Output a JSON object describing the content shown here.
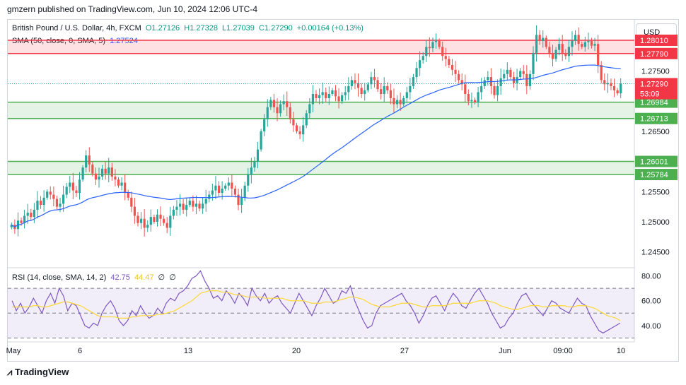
{
  "header": {
    "publisher_line": "gmzern published on TradingView.com, Jun 10, 2024 12:06 UTC-4"
  },
  "toolbar": {
    "currency_label": "USD"
  },
  "footer": {
    "logo_text": "TradingView"
  },
  "legend": {
    "symbol": "British Pound / U.S. Dollar, 4h, FXCM",
    "open": "O1.27126",
    "high": "H1.27328",
    "low": "L1.27039",
    "close": "C1.27290",
    "change": "+0.00164 (+0.13%)",
    "sma_label": "SMA (50, close, 0, SMA, 5)",
    "sma_value": "1.27524",
    "rsi_label": "RSI (14, close, SMA, 14, 2)",
    "rsi_value": "42.75",
    "rsi_sma_value": "44.47",
    "rsi_extra1": "∅",
    "rsi_extra2": "∅"
  },
  "colors": {
    "up": "#26a69a",
    "down": "#ef5350",
    "sma": "#2962ff",
    "resistance": "#f23645",
    "support": "#4caf50",
    "rsi": "#7e57c2",
    "rsi_sma": "#fdd835",
    "countdown_bg": "#f23645"
  },
  "chart_data": [
    {
      "type": "candlestick",
      "title": "British Pound / U.S. Dollar, 4h, FXCM",
      "ylim": [
        1.2425,
        1.2835
      ],
      "y_ticks": [
        1.245,
        1.25,
        1.255,
        1.265,
        1.275
      ],
      "y_tick_labels": [
        "1.24500",
        "1.25000",
        "1.25500",
        "1.26500",
        "1.27500"
      ],
      "x_tick_labels": [
        "May",
        "6",
        "13",
        "20",
        "27",
        "Jun",
        "09:00",
        "10"
      ],
      "zones": [
        {
          "kind": "resistance",
          "top": 1.2801,
          "bottom": 1.2779,
          "top_label": "1.28010",
          "bottom_label": "1.27790"
        },
        {
          "kind": "support",
          "top": 1.26984,
          "bottom": 1.26713,
          "top_label": "1.26984",
          "bottom_label": "1.26713"
        },
        {
          "kind": "support",
          "top": 1.26001,
          "bottom": 1.25784,
          "top_label": "1.26001",
          "bottom_label": "1.25784"
        }
      ],
      "last_price": {
        "value": 1.2729,
        "label": "1.27290",
        "countdown": "53:09"
      },
      "close_series": [
        1.2495,
        1.2488,
        1.2502,
        1.2498,
        1.251,
        1.2515,
        1.2508,
        1.252,
        1.2535,
        1.2528,
        1.254,
        1.255,
        1.2545,
        1.2538,
        1.2525,
        1.253,
        1.2545,
        1.2558,
        1.2565,
        1.2552,
        1.2548,
        1.257,
        1.259,
        1.261,
        1.2595,
        1.258,
        1.257,
        1.2575,
        1.2588,
        1.258,
        1.259,
        1.2575,
        1.257,
        1.256,
        1.2565,
        1.2548,
        1.254,
        1.2525,
        1.251,
        1.2498,
        1.2505,
        1.249,
        1.2495,
        1.2508,
        1.25,
        1.2512,
        1.2505,
        1.2498,
        1.249,
        1.251,
        1.252,
        1.2525,
        1.253,
        1.252,
        1.2528,
        1.2535,
        1.2525,
        1.253,
        1.2522,
        1.253,
        1.2538,
        1.2545,
        1.2552,
        1.256,
        1.2548,
        1.2555,
        1.256,
        1.2565,
        1.2555,
        1.2545,
        1.2528,
        1.254,
        1.256,
        1.2578,
        1.259,
        1.26,
        1.262,
        1.265,
        1.267,
        1.269,
        1.2702,
        1.269,
        1.268,
        1.2695,
        1.27,
        1.269,
        1.267,
        1.266,
        1.265,
        1.2645,
        1.266,
        1.268,
        1.2695,
        1.2712,
        1.2705,
        1.271,
        1.2715,
        1.2705,
        1.2712,
        1.2718,
        1.2708,
        1.27,
        1.271,
        1.2715,
        1.2725,
        1.2735,
        1.273,
        1.2722,
        1.2712,
        1.2718,
        1.2728,
        1.274,
        1.2735,
        1.272,
        1.2712,
        1.2725,
        1.2718,
        1.2705,
        1.2695,
        1.2702,
        1.2695,
        1.2705,
        1.2715,
        1.2725,
        1.274,
        1.2755,
        1.2768,
        1.2775,
        1.279,
        1.2788,
        1.2798,
        1.28,
        1.279,
        1.2775,
        1.277,
        1.276,
        1.2752,
        1.2745,
        1.2735,
        1.2728,
        1.2712,
        1.27,
        1.2702,
        1.2698,
        1.2715,
        1.2725,
        1.2735,
        1.274,
        1.2725,
        1.271,
        1.2725,
        1.2738,
        1.2745,
        1.2752,
        1.274,
        1.273,
        1.274,
        1.275,
        1.2745,
        1.2725,
        1.2745,
        1.278,
        1.281,
        1.28,
        1.2805,
        1.279,
        1.278,
        1.277,
        1.2785,
        1.2795,
        1.278,
        1.2775,
        1.279,
        1.28,
        1.281,
        1.2795,
        1.279,
        1.2798,
        1.28,
        1.2792,
        1.2795,
        1.276,
        1.2735,
        1.2728,
        1.273,
        1.2725,
        1.2718,
        1.2713,
        1.2729
      ]
    },
    {
      "type": "line",
      "title": "RSI (14, close, SMA, 14, 2)",
      "ylim": [
        28,
        86
      ],
      "y_ticks": [
        40,
        60,
        80
      ],
      "y_tick_labels": [
        "40.00",
        "60.00",
        "80.00"
      ],
      "band": [
        30,
        70
      ],
      "midline": 50,
      "series": [
        {
          "name": "RSI",
          "color": "#7e57c2",
          "values": [
            60,
            52,
            58,
            50,
            55,
            62,
            56,
            50,
            60,
            66,
            58,
            70,
            64,
            52,
            58,
            56,
            48,
            40,
            38,
            42,
            40,
            50,
            56,
            60,
            54,
            44,
            40,
            44,
            52,
            48,
            56,
            50,
            46,
            48,
            54,
            50,
            58,
            62,
            60,
            66,
            68,
            72,
            78,
            80,
            84,
            76,
            70,
            62,
            64,
            60,
            68,
            64,
            58,
            66,
            62,
            56,
            70,
            64,
            60,
            66,
            58,
            62,
            64,
            58,
            54,
            50,
            58,
            66,
            60,
            54,
            48,
            56,
            62,
            70,
            64,
            58,
            60,
            68,
            66,
            72,
            60,
            52,
            44,
            38,
            40,
            50,
            56,
            58,
            60,
            62,
            64,
            66,
            60,
            56,
            50,
            42,
            48,
            56,
            62,
            64,
            58,
            52,
            60,
            66,
            62,
            56,
            54,
            60,
            66,
            70,
            64,
            58,
            50,
            44,
            38,
            40,
            46,
            50,
            58,
            64,
            66,
            60,
            56,
            52,
            48,
            54,
            60,
            58,
            54,
            52,
            50,
            56,
            62,
            58,
            56,
            48,
            42,
            36,
            34,
            36,
            38,
            40,
            42
          ]
        },
        {
          "name": "RSI SMA",
          "color": "#fdd835",
          "values": [
            55,
            55,
            55,
            55,
            55,
            56,
            56,
            55,
            55,
            56,
            57,
            58,
            59,
            59,
            58,
            57,
            56,
            54,
            52,
            50,
            48,
            47,
            47,
            47,
            47,
            46,
            46,
            46,
            47,
            47,
            48,
            48,
            48,
            48,
            49,
            49,
            50,
            51,
            52,
            54,
            56,
            58,
            60,
            63,
            66,
            67,
            68,
            68,
            68,
            67,
            67,
            66,
            65,
            65,
            64,
            63,
            63,
            63,
            63,
            62,
            62,
            62,
            62,
            62,
            61,
            60,
            60,
            60,
            60,
            59,
            58,
            58,
            58,
            59,
            59,
            59,
            60,
            61,
            62,
            63,
            63,
            62,
            61,
            59,
            57,
            56,
            55,
            55,
            55,
            56,
            57,
            58,
            58,
            58,
            57,
            56,
            55,
            55,
            56,
            56,
            56,
            56,
            57,
            58,
            58,
            58,
            58,
            58,
            59,
            60,
            60,
            60,
            59,
            58,
            56,
            55,
            54,
            53,
            53,
            54,
            55,
            56,
            56,
            56,
            55,
            55,
            56,
            56,
            56,
            56,
            55,
            55,
            56,
            56,
            56,
            55,
            54,
            52,
            50,
            48,
            47,
            46,
            44
          ]
        }
      ]
    }
  ]
}
